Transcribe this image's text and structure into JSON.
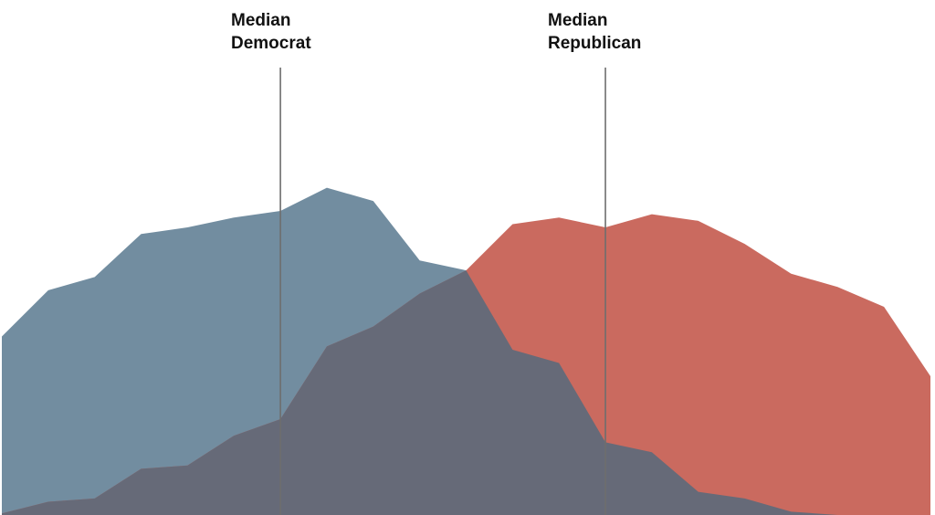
{
  "chart_data": {
    "type": "area",
    "title": "",
    "xlabel": "",
    "ylabel": "",
    "xlim": [
      0,
      20
    ],
    "ylim": [
      0,
      100
    ],
    "grid": false,
    "legend": "none",
    "x": [
      0,
      1,
      2,
      3,
      4,
      5,
      6,
      7,
      8,
      9,
      10,
      11,
      12,
      13,
      14,
      15,
      16,
      17,
      18,
      19,
      20
    ],
    "series": [
      {
        "color": "#728da0",
        "values": [
          54,
          68,
          72,
          85,
          87,
          90,
          92,
          99,
          95,
          77,
          74,
          50,
          46,
          22,
          19,
          7,
          5,
          1,
          0,
          0,
          0
        ]
      },
      {
        "color": "#ca6a5f",
        "values": [
          0.5,
          4,
          5,
          14,
          15,
          24,
          29,
          51,
          57,
          67,
          74,
          56,
          52,
          22,
          19,
          7,
          5,
          1,
          0,
          0,
          0
        ]
      },
      {
        "color": "#ca6a5f",
        "values": [
          0,
          0,
          0,
          0,
          0,
          0,
          0,
          0,
          0,
          0,
          74,
          88,
          90,
          87,
          91,
          89,
          82,
          73,
          69,
          63,
          42
        ]
      }
    ],
    "overlap_color": "#666a78",
    "medians": [
      {
        "label_line1": "Median",
        "label_line2": "Democrat",
        "x": 6
      },
      {
        "label_line1": "Median",
        "label_line2": "Republican",
        "x": 13
      }
    ]
  }
}
